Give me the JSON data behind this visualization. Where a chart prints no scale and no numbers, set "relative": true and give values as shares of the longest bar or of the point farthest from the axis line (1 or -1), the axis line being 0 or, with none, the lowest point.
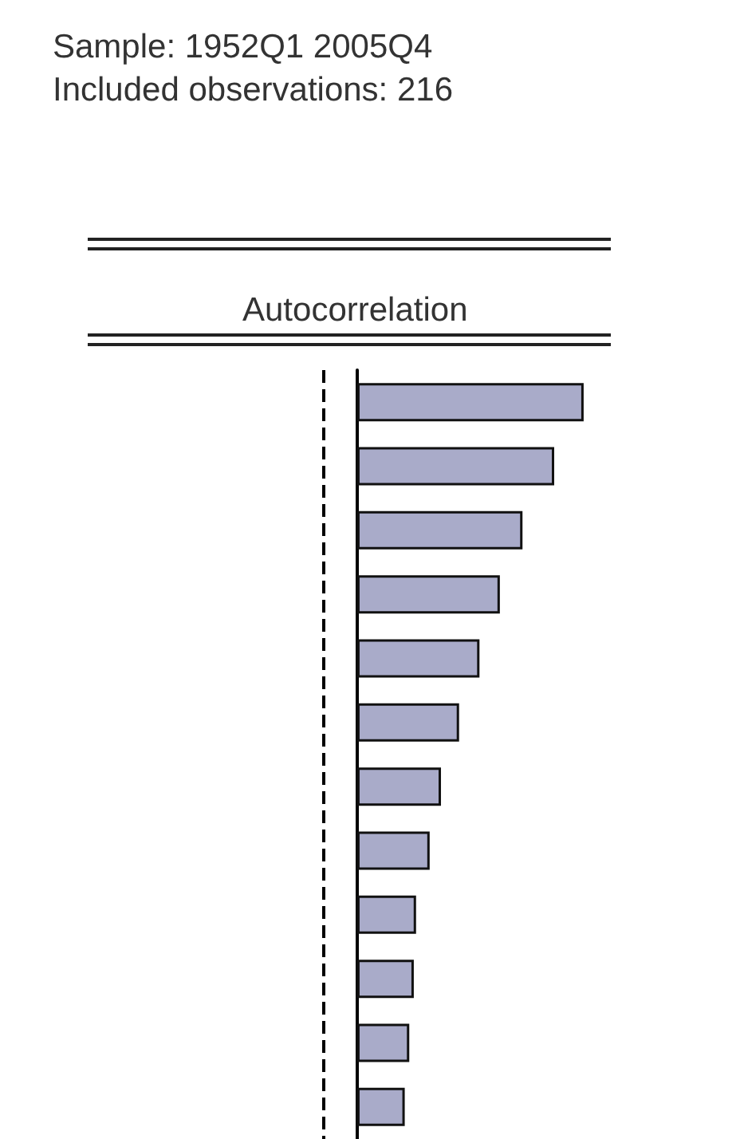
{
  "chart_data": {
    "type": "bar",
    "orientation": "horizontal",
    "relative": true,
    "title": "Sample: 1952Q1 2005Q4",
    "subtitle": "Included observations: 216",
    "xlabel": "Autocorrelation",
    "categories": [
      null,
      null,
      null,
      null,
      null,
      null,
      null,
      null,
      null,
      null,
      null,
      null
    ],
    "values": [
      1,
      0.87,
      0.73,
      0.63,
      0.54,
      0.45,
      0.37,
      0.32,
      0.26,
      0.25,
      0.23,
      0.21
    ],
    "color": "#a9abc9",
    "ref_lines": [
      {
        "axis": "x",
        "value": -0.15,
        "color": "#000000",
        "line_style": "dashed"
      }
    ]
  }
}
